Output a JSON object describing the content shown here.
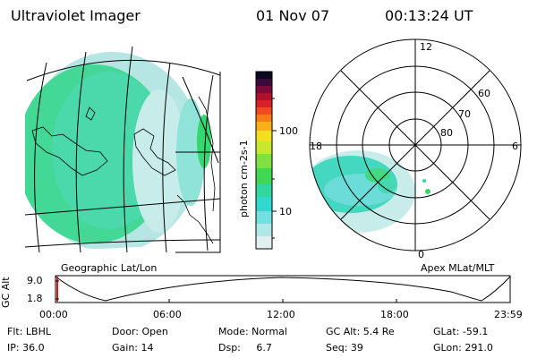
{
  "header": {
    "instrument": "Ultraviolet Imager",
    "date": "01 Nov 07",
    "time": "00:13:24 UT"
  },
  "colorbar": {
    "unit_label": "photon cm-2s-1",
    "ticks": [
      "100",
      "10"
    ],
    "colors": [
      "#0a0a20",
      "#3a0a3a",
      "#7a0a3a",
      "#b0102a",
      "#d8202a",
      "#f04a20",
      "#f87a18",
      "#f8b018",
      "#f0e020",
      "#c8e830",
      "#80e040",
      "#40d850",
      "#30d8a0",
      "#30d8d0",
      "#70e0e0",
      "#b0e8e8",
      "#e0f0f0"
    ]
  },
  "left_map": {
    "label": "Geographic Lat/Lon"
  },
  "right_map": {
    "label": "Apex MLat/MLT",
    "mlt_labels": {
      "top": "12",
      "left": "18",
      "right": "6",
      "bottom": "0"
    },
    "lat_labels": [
      "60",
      "70",
      "80"
    ]
  },
  "altitude_plot": {
    "ylabel": "GC Alt",
    "yticks": [
      "9.0",
      "1.8"
    ],
    "xticks": [
      "00:00",
      "06:00",
      "12:00",
      "18:00",
      "23:59"
    ]
  },
  "status": {
    "flt": "Flt: LBHL",
    "ip": "IP: 36.0",
    "door": "Door: Open",
    "gain": "Gain: 14",
    "mode": "Mode: Normal",
    "dsp": "Dsp:     6.7",
    "gcalt": "GC Alt: 5.4 Re",
    "seq": "Seq: 39",
    "glat": "GLat: -59.1",
    "glon": "GLon: 291.0"
  }
}
